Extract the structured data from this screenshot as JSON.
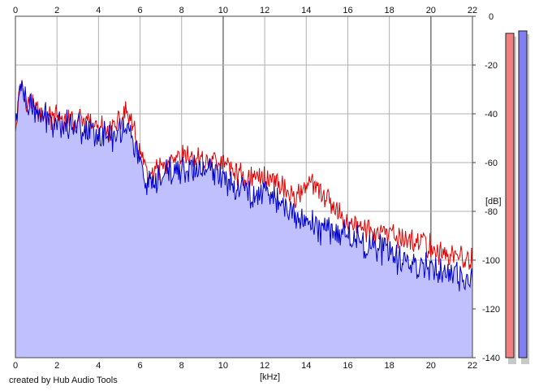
{
  "credit": "created by Hub Audio Tools",
  "chart_data": {
    "type": "area",
    "xlabel": "[kHz]",
    "ylabel": "[dB]",
    "xlim": [
      0,
      22
    ],
    "ylim": [
      -140,
      0
    ],
    "x_ticks": [
      "0",
      "2",
      "4",
      "6",
      "8",
      "10",
      "12",
      "14",
      "16",
      "18",
      "20",
      "22"
    ],
    "y_ticks": [
      "0",
      "-20",
      "-40",
      "-60",
      "-80",
      "-100",
      "-120",
      "-140"
    ],
    "grid": true,
    "x": [
      0,
      0.25,
      0.5,
      1,
      1.5,
      2,
      2.5,
      3,
      3.5,
      4,
      4.5,
      5,
      5.3,
      5.6,
      6,
      6.3,
      6.6,
      7,
      7.5,
      8,
      8.5,
      9,
      9.5,
      10,
      10.5,
      11,
      11.5,
      12,
      12.5,
      13,
      13.5,
      14,
      14.5,
      15,
      15.5,
      16,
      16.5,
      17,
      17.5,
      18,
      18.5,
      19,
      19.5,
      20,
      20.5,
      21,
      21.5,
      22
    ],
    "series": [
      {
        "color": "#e00000",
        "values": [
          -44,
          -26,
          -33,
          -38,
          -41,
          -42,
          -43,
          -43,
          -44,
          -46,
          -47,
          -44,
          -38,
          -44,
          -57,
          -63,
          -66,
          -62,
          -61,
          -58,
          -58,
          -59,
          -59,
          -60,
          -63,
          -66,
          -66,
          -66,
          -67,
          -71,
          -75,
          -68,
          -71,
          -75,
          -81,
          -84,
          -86,
          -88,
          -89,
          -90,
          -91,
          -92,
          -92,
          -95,
          -97,
          -98,
          -99,
          -101
        ]
      },
      {
        "color": "#0000cc",
        "values": [
          -45,
          -27,
          -35,
          -40,
          -42,
          -43,
          -44,
          -45,
          -46,
          -48,
          -50,
          -47,
          -44,
          -49,
          -60,
          -69,
          -72,
          -66,
          -64,
          -63,
          -63,
          -63,
          -64,
          -65,
          -69,
          -71,
          -73,
          -71,
          -74,
          -79,
          -83,
          -82,
          -87,
          -87,
          -88,
          -89,
          -92,
          -94,
          -94,
          -98,
          -100,
          -101,
          -102,
          -102,
          -104,
          -107,
          -108,
          -109
        ]
      }
    ],
    "fill_color": "#c0c0ff",
    "meters": [
      {
        "color": "#f08080",
        "level_db": -7
      },
      {
        "color": "#8080f0",
        "level_db": -6
      }
    ],
    "meter_range": [
      -140,
      0
    ]
  }
}
